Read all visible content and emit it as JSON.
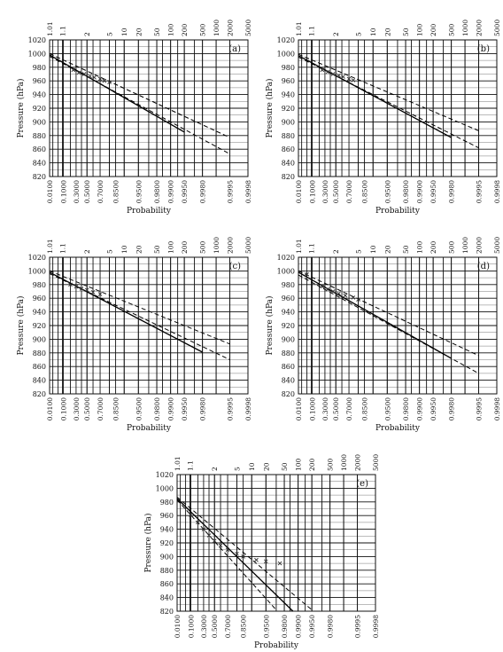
{
  "figure": {
    "ylabel": "Pressure (hPa)",
    "xlabel": "Probability"
  },
  "axes": {
    "bottom_ticks": [
      "0.0100",
      "0.1000",
      "0.3000",
      "0.5000",
      "0.7000",
      "0.8500",
      "0.9500",
      "0.9800",
      "0.9900",
      "0.9950",
      "0.9980",
      "0.9995",
      "0.9998"
    ],
    "top_ticks": [
      "1.01",
      "1.1",
      "2",
      "5",
      "10",
      "20",
      "50",
      "100",
      "200",
      "500",
      "1000",
      "2000",
      "5000"
    ],
    "y_ticks": [
      820,
      840,
      860,
      880,
      900,
      920,
      940,
      960,
      980,
      1000,
      1020
    ]
  },
  "chart_data": [
    {
      "type": "scatter",
      "panel": "(a)",
      "ylim": [
        820,
        1020
      ],
      "x_scale": "gumbel-probability",
      "series": [
        {
          "style": "solid",
          "x": [
            0.01,
            0.995
          ],
          "y": [
            998,
            885
          ]
        },
        {
          "style": "dashed",
          "x": [
            0.01,
            0.9995
          ],
          "y": [
            1000,
            877
          ]
        },
        {
          "style": "dashed",
          "x": [
            0.01,
            0.9995
          ],
          "y": [
            996,
            853
          ]
        },
        {
          "style": "points",
          "x": [
            0.25,
            0.35,
            0.45,
            0.55,
            0.62,
            0.7,
            0.75,
            0.8
          ],
          "y": [
            976,
            972,
            970,
            967,
            965,
            963,
            960,
            958
          ]
        }
      ]
    },
    {
      "type": "scatter",
      "panel": "(b)",
      "ylim": [
        820,
        1020
      ],
      "x_scale": "gumbel-probability",
      "series": [
        {
          "style": "solid",
          "x": [
            0.01,
            0.998
          ],
          "y": [
            997,
            877
          ]
        },
        {
          "style": "dashed",
          "x": [
            0.01,
            0.9995
          ],
          "y": [
            999,
            887
          ]
        },
        {
          "style": "dashed",
          "x": [
            0.01,
            0.9995
          ],
          "y": [
            995,
            862
          ]
        },
        {
          "style": "points",
          "x": [
            0.25,
            0.35,
            0.45,
            0.55,
            0.62,
            0.7,
            0.75
          ],
          "y": [
            976,
            973,
            970,
            968,
            966,
            963,
            961
          ]
        }
      ]
    },
    {
      "type": "scatter",
      "panel": "(c)",
      "ylim": [
        820,
        1020
      ],
      "x_scale": "gumbel-probability",
      "series": [
        {
          "style": "solid",
          "x": [
            0.01,
            0.998
          ],
          "y": [
            998,
            881
          ]
        },
        {
          "style": "dashed",
          "x": [
            0.01,
            0.9995
          ],
          "y": [
            1000,
            893
          ]
        },
        {
          "style": "dashed",
          "x": [
            0.01,
            0.9995
          ],
          "y": [
            996,
            870
          ]
        },
        {
          "style": "points",
          "x": [
            0.2,
            0.3,
            0.4,
            0.5,
            0.6,
            0.7
          ],
          "y": [
            980,
            977,
            974,
            972,
            969,
            966
          ]
        }
      ]
    },
    {
      "type": "scatter",
      "panel": "(d)",
      "ylim": [
        820,
        1020
      ],
      "x_scale": "gumbel-probability",
      "series": [
        {
          "style": "solid",
          "x": [
            0.01,
            0.998
          ],
          "y": [
            998,
            872
          ]
        },
        {
          "style": "dashed",
          "x": [
            0.01,
            0.9995
          ],
          "y": [
            1000,
            876
          ]
        },
        {
          "style": "dashed",
          "x": [
            0.01,
            0.9995
          ],
          "y": [
            994,
            850
          ]
        },
        {
          "style": "points",
          "x": [
            0.05,
            0.25,
            0.35,
            0.45,
            0.55,
            0.65,
            0.75,
            0.8
          ],
          "y": [
            995,
            977,
            973,
            970,
            967,
            964,
            961,
            958
          ]
        }
      ]
    },
    {
      "type": "scatter",
      "panel": "(e)",
      "ylim": [
        820,
        1020
      ],
      "x_scale": "gumbel-probability",
      "series": [
        {
          "style": "solid",
          "x": [
            0.01,
            0.987
          ],
          "y": [
            985,
            820
          ]
        },
        {
          "style": "dashed",
          "x": [
            0.01,
            0.995
          ],
          "y": [
            987,
            822
          ]
        },
        {
          "style": "dashed",
          "x": [
            0.01,
            0.97
          ],
          "y": [
            983,
            822
          ]
        },
        {
          "style": "points",
          "x": [
            0.1,
            0.2,
            0.3,
            0.4,
            0.5,
            0.6,
            0.7,
            0.8,
            0.85,
            0.92,
            0.95,
            0.975
          ],
          "y": [
            961,
            950,
            940,
            931,
            923,
            916,
            910,
            904,
            900,
            895,
            893,
            890
          ]
        }
      ]
    }
  ]
}
